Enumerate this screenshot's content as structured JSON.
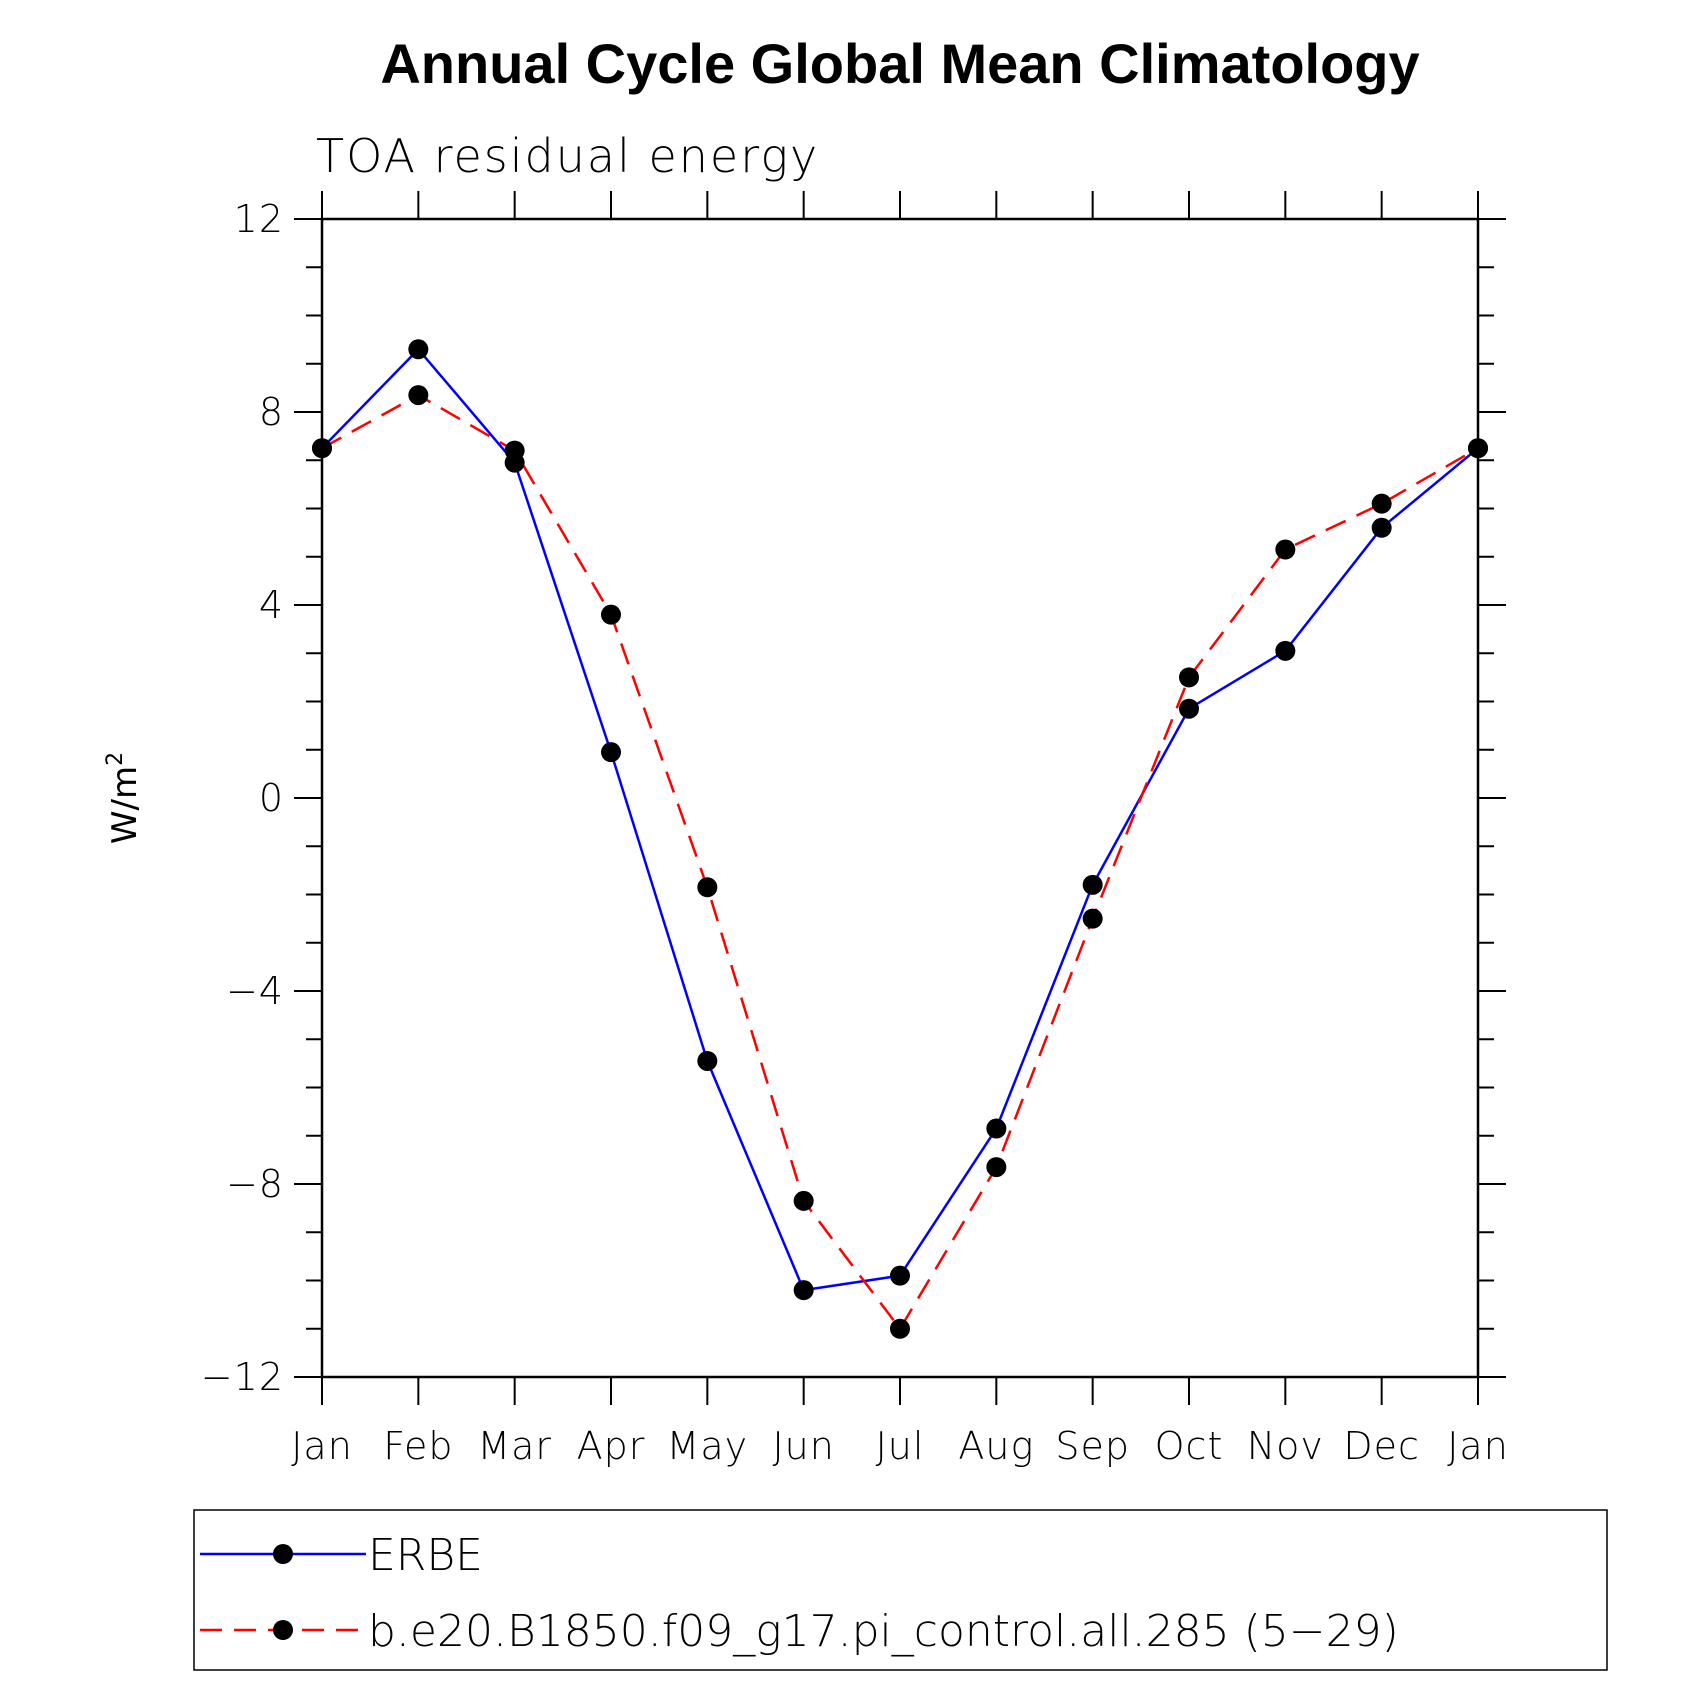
{
  "chart_data": {
    "type": "line",
    "title": "Annual Cycle Global Mean Climatology",
    "subtitle": "TOA residual energy",
    "ylabel": "W/m",
    "ylabel_superscript": "2",
    "categories": [
      "Jan",
      "Feb",
      "Mar",
      "Apr",
      "May",
      "Jun",
      "Jul",
      "Aug",
      "Sep",
      "Oct",
      "Nov",
      "Dec",
      "Jan"
    ],
    "ylim": [
      -12,
      12
    ],
    "yticks": [
      12,
      8,
      4,
      0,
      -4,
      -8,
      -12
    ],
    "ytick_labels": [
      "12",
      "8",
      "4",
      "0",
      "−4",
      "−8",
      "−12"
    ],
    "series": [
      {
        "name": "ERBE",
        "color": "#0000ff",
        "dash": "solid",
        "marker": "filled-circle",
        "values": [
          7.25,
          9.3,
          6.95,
          0.95,
          -5.45,
          -10.2,
          -9.9,
          -6.85,
          -1.8,
          1.85,
          3.05,
          5.6,
          7.25
        ]
      },
      {
        "name": "b.e20.B1850.f09_g17.pi_control.all.285 (5−29)",
        "color": "#ff0000",
        "dash": "dashed",
        "marker": "filled-circle",
        "values": [
          7.25,
          8.35,
          7.2,
          3.8,
          -1.85,
          -8.35,
          -11.0,
          -7.65,
          -2.5,
          2.5,
          5.15,
          6.1,
          7.25
        ]
      }
    ],
    "legend": {
      "placement": "bottom",
      "entries": [
        "ERBE",
        "b.e20.B1850.f09_g17.pi_control.all.285 (5−29)"
      ]
    }
  }
}
